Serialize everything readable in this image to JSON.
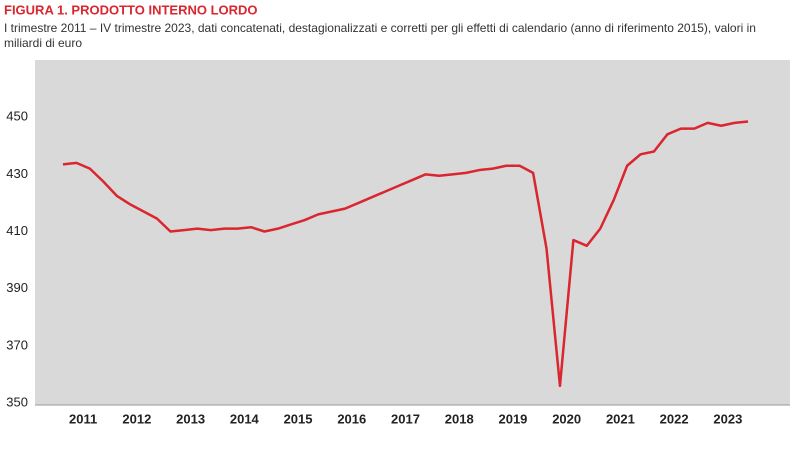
{
  "chart_data": {
    "type": "line",
    "title": "FIGURA 1. PRODOTTO INTERNO LORDO",
    "subtitle": "I trimestre 2011 – IV trimestre 2023, dati concatenati, destagionalizzati e corretti per gli effetti di calendario (anno di riferimento 2015), valori in miliardi di euro",
    "categories": [
      "2011",
      "2012",
      "2013",
      "2014",
      "2015",
      "2016",
      "2017",
      "2018",
      "2019",
      "2020",
      "2021",
      "2022",
      "2023"
    ],
    "values": [
      [
        433.5,
        434,
        432,
        427.5
      ],
      [
        422.5,
        419.5,
        417,
        414.5
      ],
      [
        410,
        410.5,
        411,
        410.5
      ],
      [
        411,
        411,
        411.5,
        410
      ],
      [
        411,
        412.5,
        414,
        416
      ],
      [
        417,
        418,
        420,
        422
      ],
      [
        424,
        426,
        428,
        430
      ],
      [
        429.5,
        430,
        430.5,
        431.5
      ],
      [
        432,
        433,
        433,
        430.5
      ],
      [
        404,
        356,
        407,
        405
      ],
      [
        411,
        421,
        433,
        437
      ],
      [
        438,
        444,
        446,
        446
      ],
      [
        448,
        447,
        448,
        448.5
      ]
    ],
    "color": "#d9262f",
    "ylim": [
      350,
      470
    ],
    "yticks": [
      350,
      370,
      390,
      410,
      430,
      450
    ],
    "grid": false
  }
}
